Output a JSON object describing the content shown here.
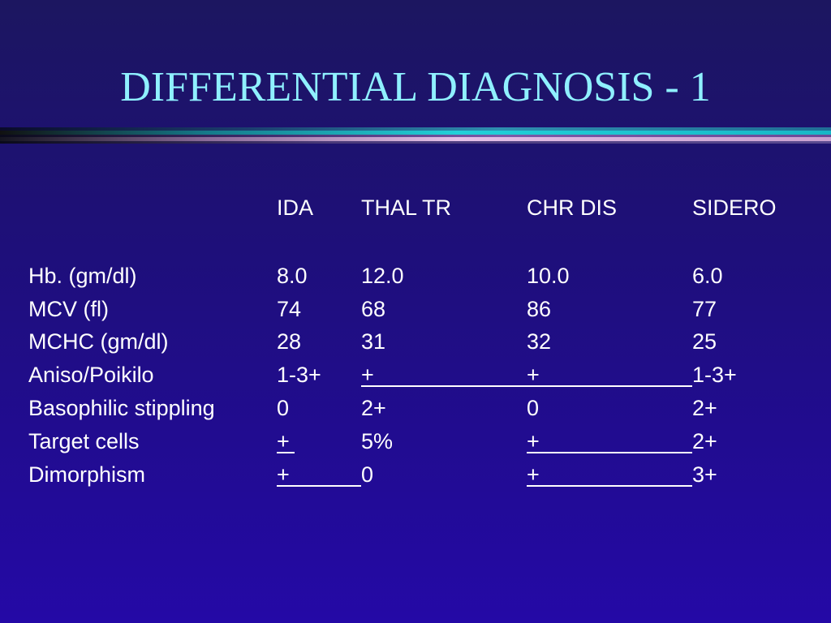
{
  "slide": {
    "title": "DIFFERENTIAL DIAGNOSIS - 1"
  },
  "table": {
    "columns": [
      "IDA",
      "THAL TR",
      "CHR DIS",
      "SIDERO"
    ],
    "rows": [
      {
        "label": "Hb. (gm/dl)",
        "cells": [
          "8.0",
          "12.0",
          "10.0",
          "6.0"
        ]
      },
      {
        "label": "MCV (fl)",
        "cells": [
          "74",
          "68",
          "86",
          "77"
        ]
      },
      {
        "label": "MCHC (gm/dl)",
        "cells": [
          "28",
          "31",
          "32",
          "25"
        ]
      },
      {
        "label": "Aniso/Poikilo",
        "cells": [
          "1-3+",
          "+",
          "+",
          "1-3+"
        ]
      },
      {
        "label": "Basophilic stippling",
        "cells": [
          "0",
          "2+",
          "0",
          "2+"
        ]
      },
      {
        "label": "Target cells",
        "cells": [
          "+",
          "5%",
          "+",
          "2+"
        ]
      },
      {
        "label": "Dimorphism",
        "cells": [
          "+",
          "0",
          "+",
          "3+"
        ]
      }
    ]
  }
}
